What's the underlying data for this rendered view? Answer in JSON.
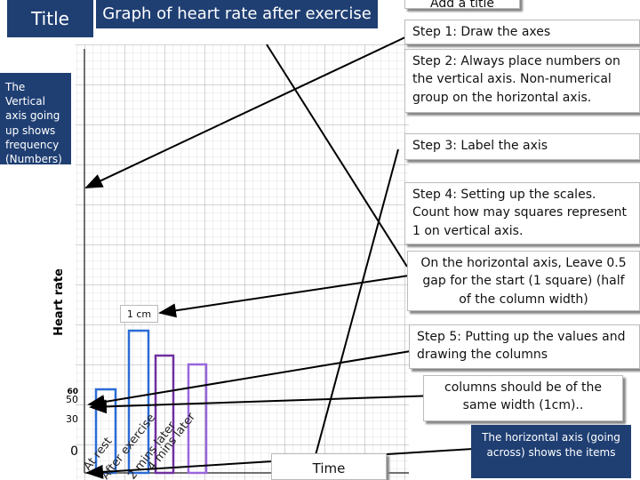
{
  "header": {
    "title_box": "Title",
    "graph_title": "Graph of heart rate after exercise",
    "add_title": "Add a title"
  },
  "steps": [
    "Step 1: Draw the axes",
    "Step 2: Always place numbers on the vertical axis. Non-numerical group on the horizontal axis.",
    "Step 3:  Label the axis",
    "Step 4: Setting up the scales. Count how may squares represent  1 on vertical axis.",
    "On the horizontal axis, Leave 0.5 gap for the start  (1 square) (half of the column width)",
    "Step 5: Putting up the values and drawing the columns",
    "columns should be of the same width (1cm).."
  ],
  "notes": {
    "vertical": "The Vertical axis going up shows frequency (Numbers)",
    "horizontal": "The horizontal axis (going across) shows the items"
  },
  "graph": {
    "y_label": "Heart rate",
    "x_label": "Time",
    "scale_note": "1 cm",
    "y_numbers": [
      "60",
      "50",
      "30",
      "0"
    ],
    "x_items": [
      "At rest",
      "After exercise",
      "2 mins later",
      "4 mins later"
    ]
  }
}
